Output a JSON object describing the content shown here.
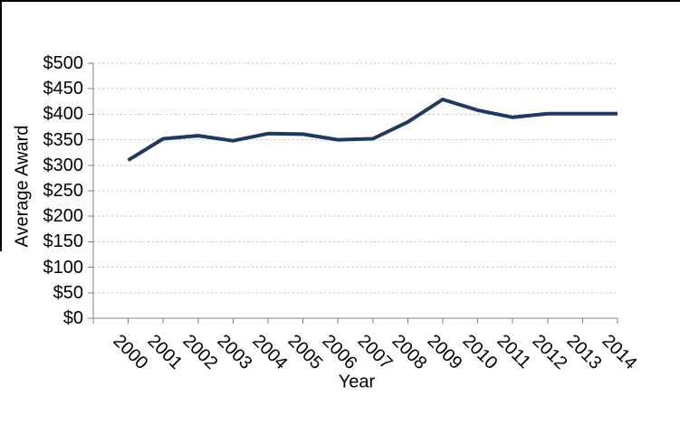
{
  "chart_data": {
    "type": "line",
    "title": "",
    "xlabel": "Year",
    "ylabel": "Average Award",
    "categories": [
      "2000",
      "2001",
      "2002",
      "2003",
      "2004",
      "2005",
      "2006",
      "2007",
      "2008",
      "2009",
      "2010",
      "2011",
      "2012",
      "2013",
      "2014"
    ],
    "series": [
      {
        "name": "Average Award",
        "color": "#1F3864",
        "values": [
          310,
          352,
          358,
          348,
          362,
          361,
          350,
          352,
          385,
          429,
          408,
          394,
          401,
          401,
          401
        ]
      }
    ],
    "ylim": [
      0,
      500
    ],
    "ytick_step": 50,
    "ytick_labels": [
      "$0",
      "$50",
      "$100",
      "$150",
      "$200",
      "$250",
      "$300",
      "$350",
      "$400",
      "$450",
      "$500"
    ],
    "grid": {
      "horizontal": true,
      "style": "dashed",
      "color": "#C3C3C3"
    },
    "axis_color": "#808080",
    "text_color": "#000000",
    "legend_position": "none"
  }
}
